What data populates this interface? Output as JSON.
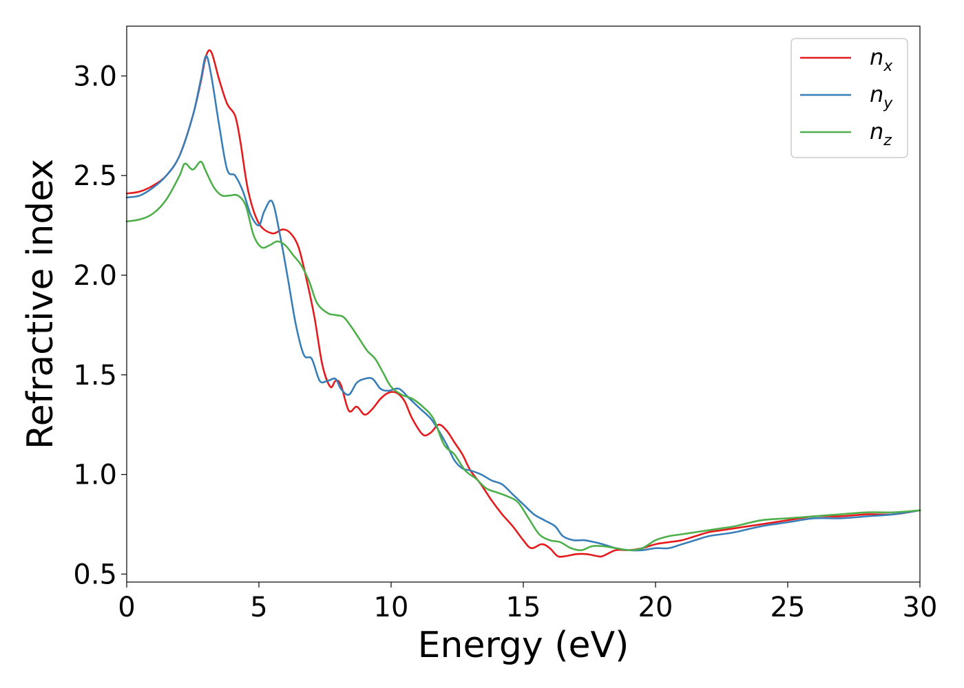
{
  "chart_data": {
    "type": "line",
    "title": "",
    "xlabel": "Energy (eV)",
    "ylabel": "Refractive index",
    "xlim": [
      0,
      30
    ],
    "ylim": [
      0.46,
      3.25
    ],
    "xticks": [
      0,
      5,
      10,
      15,
      20,
      25,
      30
    ],
    "xtick_labels": [
      "0",
      "5",
      "10",
      "15",
      "20",
      "25",
      "30"
    ],
    "yticks": [
      0.5,
      1.0,
      1.5,
      2.0,
      2.5,
      3.0
    ],
    "ytick_labels": [
      "0.5",
      "1.0",
      "1.5",
      "2.0",
      "2.5",
      "3.0"
    ],
    "grid": false,
    "legend_position": "top-right",
    "series": [
      {
        "name": "n_x",
        "label_base": "n",
        "label_sub": "x",
        "color": "#e41a1c",
        "x": [
          0,
          0.5,
          1,
          1.5,
          2,
          2.5,
          2.8,
          3.0,
          3.2,
          3.5,
          3.8,
          4.1,
          4.3,
          4.6,
          5.0,
          5.5,
          5.9,
          6.2,
          6.5,
          6.8,
          7.1,
          7.4,
          7.7,
          7.9,
          8.1,
          8.4,
          8.7,
          9.0,
          9.3,
          9.6,
          9.9,
          10.2,
          10.5,
          10.8,
          11.2,
          11.5,
          11.8,
          12.1,
          12.4,
          12.7,
          13.0,
          13.4,
          13.8,
          14.2,
          14.6,
          15.0,
          15.3,
          15.7,
          16.0,
          16.3,
          16.6,
          17.0,
          17.4,
          17.8,
          18.0,
          18.5,
          19.0,
          19.5,
          20.0,
          20.5,
          21.0,
          21.5,
          22.0,
          22.5,
          23.0,
          24.0,
          25.0,
          26.0,
          27.0,
          28.0,
          29.0,
          30.0
        ],
        "y": [
          2.41,
          2.42,
          2.45,
          2.5,
          2.6,
          2.8,
          2.97,
          3.1,
          3.12,
          2.98,
          2.86,
          2.8,
          2.67,
          2.42,
          2.26,
          2.21,
          2.23,
          2.21,
          2.14,
          1.98,
          1.79,
          1.55,
          1.44,
          1.47,
          1.45,
          1.32,
          1.34,
          1.3,
          1.33,
          1.38,
          1.41,
          1.41,
          1.37,
          1.28,
          1.2,
          1.21,
          1.25,
          1.22,
          1.16,
          1.1,
          1.02,
          0.95,
          0.87,
          0.8,
          0.74,
          0.67,
          0.63,
          0.65,
          0.63,
          0.59,
          0.59,
          0.6,
          0.6,
          0.59,
          0.59,
          0.62,
          0.62,
          0.63,
          0.65,
          0.66,
          0.67,
          0.69,
          0.71,
          0.72,
          0.73,
          0.75,
          0.77,
          0.79,
          0.79,
          0.8,
          0.8,
          0.82
        ]
      },
      {
        "name": "n_y",
        "label_base": "n",
        "label_sub": "y",
        "color": "#377eb8",
        "x": [
          0,
          0.5,
          1,
          1.5,
          2,
          2.5,
          2.8,
          3.0,
          3.2,
          3.5,
          3.8,
          4.1,
          4.4,
          4.7,
          5.0,
          5.2,
          5.5,
          5.8,
          6.1,
          6.4,
          6.7,
          7.0,
          7.3,
          7.6,
          7.9,
          8.1,
          8.4,
          8.7,
          9.0,
          9.3,
          9.6,
          9.9,
          10.3,
          10.7,
          11.1,
          11.5,
          11.8,
          12.1,
          12.4,
          12.7,
          13.0,
          13.4,
          13.8,
          14.2,
          14.6,
          15.0,
          15.4,
          15.8,
          16.2,
          16.5,
          16.9,
          17.3,
          17.7,
          18.0,
          18.5,
          19.0,
          19.5,
          20.0,
          20.5,
          21.0,
          21.5,
          22.0,
          22.5,
          23.0,
          24.0,
          25.0,
          26.0,
          27.0,
          28.0,
          29.0,
          30.0
        ],
        "y": [
          2.39,
          2.4,
          2.44,
          2.5,
          2.6,
          2.8,
          2.98,
          3.1,
          3.0,
          2.75,
          2.53,
          2.5,
          2.42,
          2.3,
          2.25,
          2.32,
          2.37,
          2.2,
          1.98,
          1.75,
          1.6,
          1.58,
          1.47,
          1.47,
          1.48,
          1.43,
          1.4,
          1.46,
          1.48,
          1.48,
          1.43,
          1.42,
          1.43,
          1.38,
          1.33,
          1.28,
          1.22,
          1.15,
          1.07,
          1.03,
          1.02,
          1.0,
          0.97,
          0.95,
          0.9,
          0.85,
          0.8,
          0.77,
          0.74,
          0.69,
          0.67,
          0.67,
          0.66,
          0.65,
          0.63,
          0.62,
          0.62,
          0.63,
          0.63,
          0.65,
          0.67,
          0.69,
          0.7,
          0.71,
          0.74,
          0.76,
          0.78,
          0.78,
          0.79,
          0.8,
          0.82
        ]
      },
      {
        "name": "n_z",
        "label_base": "n",
        "label_sub": "z",
        "color": "#4daf4a",
        "x": [
          0,
          0.5,
          1,
          1.5,
          2,
          2.2,
          2.5,
          2.8,
          3.0,
          3.3,
          3.6,
          3.9,
          4.2,
          4.5,
          4.8,
          5.1,
          5.4,
          5.7,
          6.0,
          6.3,
          6.6,
          6.9,
          7.2,
          7.6,
          7.9,
          8.2,
          8.5,
          8.8,
          9.1,
          9.4,
          9.7,
          10.0,
          10.4,
          10.8,
          11.2,
          11.6,
          12.0,
          12.4,
          12.8,
          13.2,
          13.6,
          14.0,
          14.4,
          14.8,
          15.2,
          15.6,
          16.0,
          16.4,
          16.8,
          17.2,
          17.6,
          18.0,
          18.5,
          19.0,
          19.5,
          20.0,
          20.5,
          21.0,
          21.5,
          22.0,
          22.5,
          23.0,
          24.0,
          25.0,
          26.0,
          27.0,
          28.0,
          29.0,
          30.0
        ],
        "y": [
          2.27,
          2.28,
          2.31,
          2.38,
          2.5,
          2.56,
          2.53,
          2.57,
          2.52,
          2.44,
          2.4,
          2.4,
          2.4,
          2.35,
          2.2,
          2.14,
          2.15,
          2.17,
          2.15,
          2.1,
          2.05,
          1.97,
          1.86,
          1.81,
          1.8,
          1.79,
          1.74,
          1.68,
          1.62,
          1.58,
          1.51,
          1.44,
          1.4,
          1.38,
          1.34,
          1.28,
          1.15,
          1.1,
          1.02,
          0.98,
          0.93,
          0.91,
          0.89,
          0.86,
          0.78,
          0.7,
          0.67,
          0.66,
          0.63,
          0.62,
          0.64,
          0.64,
          0.63,
          0.62,
          0.63,
          0.67,
          0.69,
          0.7,
          0.71,
          0.72,
          0.73,
          0.74,
          0.77,
          0.78,
          0.79,
          0.8,
          0.81,
          0.81,
          0.82
        ]
      }
    ]
  }
}
